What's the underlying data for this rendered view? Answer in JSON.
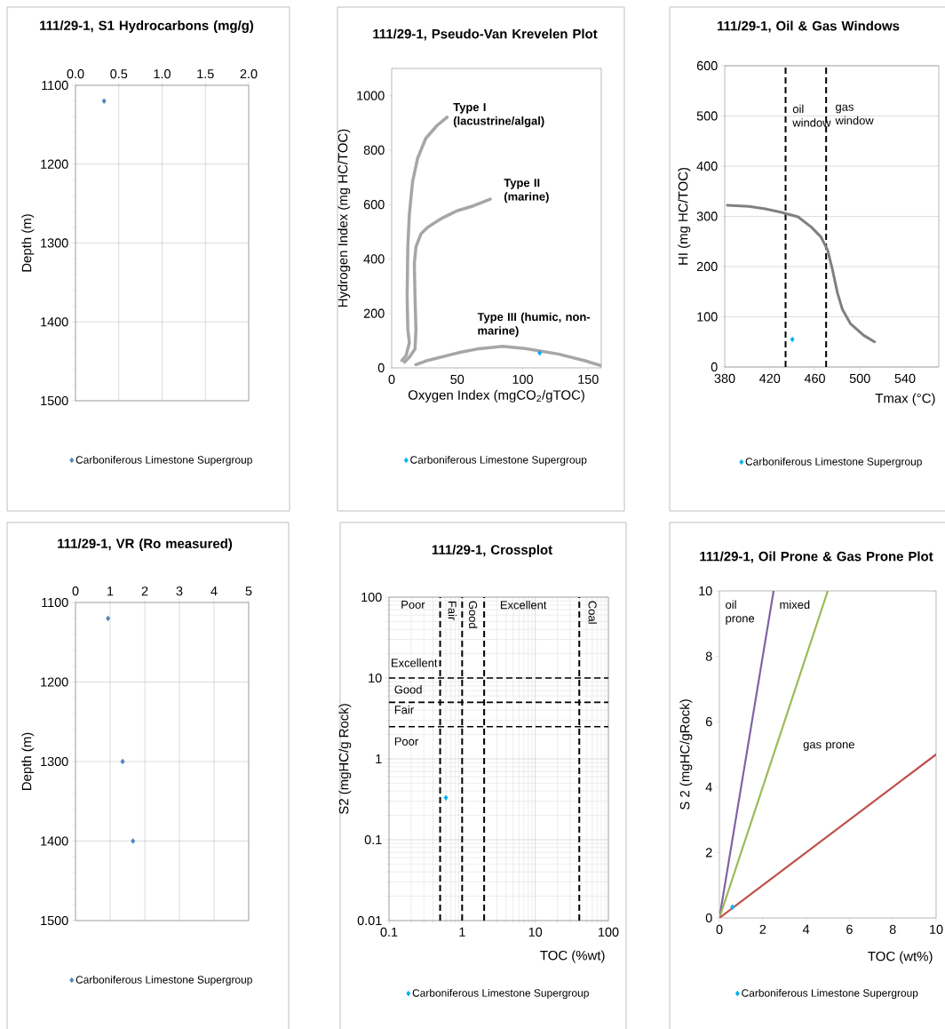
{
  "chart_data": [
    {
      "type": "scatter",
      "title": "111/29-1, S1 Hydrocarbons  (mg/g)",
      "ylabel": "Depth (m)",
      "xlim": [
        0,
        2
      ],
      "xticks": [
        {
          "value": 0,
          "label": "0.0"
        },
        0.5,
        {
          "value": 1,
          "label": "1.0"
        },
        1.5,
        {
          "value": 2,
          "label": "2.0"
        }
      ],
      "ylim": [
        1500,
        1100
      ],
      "yticks": [
        1100,
        1200,
        1300,
        1400,
        1500
      ],
      "grid": true,
      "legend": "bottom",
      "series": [
        {
          "name": "Carboniferous Limestone Supergroup",
          "color": "#4f81bd",
          "marker": "diamond",
          "x": [
            0.33
          ],
          "values": [
            1120
          ]
        }
      ]
    },
    {
      "type": "scatter",
      "title": "111/29-1, Pseudo-Van Krevelen Plot",
      "xlabel": "Oxygen Index (mgCO$_{2}$/gTOC)",
      "ylabel": "Hydrogen Index (mg HC/TOC)",
      "xlim": [
        0,
        160
      ],
      "xticks": [
        0,
        50,
        100,
        150
      ],
      "ylim": [
        0,
        1100
      ],
      "yticks": [
        0,
        200,
        400,
        600,
        800,
        1000
      ],
      "legend": "bottom",
      "series": [
        {
          "type": "line",
          "color": "#a6a6a6",
          "x": [
            42.3,
            34.8,
            26,
            19.8,
            16,
            13.5,
            12.3,
            11.8,
            12.3,
            13.5,
            11,
            7.8
          ],
          "values": [
            921,
            891,
            843,
            770,
            686,
            565,
            444,
            262,
            141,
            93,
            45,
            27
          ]
        },
        {
          "type": "line",
          "color": "#a6a6a6",
          "x": [
            75.3,
            62.3,
            49.8,
            37.3,
            27.3,
            22.3,
            18.5,
            17.3,
            17.8,
            18.5,
            17.8,
            13.5,
            9.8
          ],
          "values": [
            620,
            595,
            577,
            547,
            516,
            492,
            444,
            383,
            262,
            141,
            69,
            39,
            21
          ]
        },
        {
          "type": "line",
          "color": "#a6a6a6",
          "x": [
            18.5,
            27.3,
            52.3,
            64.8,
            84.8,
            102,
            127,
            147,
            160
          ],
          "values": [
            12,
            27,
            57,
            69,
            79,
            71,
            51,
            27,
            8
          ]
        },
        {
          "name": "Carboniferous Limestone Supergroup",
          "color": "#00b0f0",
          "marker": "diamond",
          "x": [
            113
          ],
          "values": [
            55
          ]
        }
      ],
      "annotations": [
        "Type I (lacustrine/algal)",
        "Type II (marine)",
        "Type III (humic, non-marine)"
      ]
    },
    {
      "type": "scatter",
      "title": "111/29-1, Oil & Gas Windows",
      "xlabel": "Tmax (°C)",
      "ylabel": "HI (mg HC/TOC)",
      "xlim": [
        380,
        570
      ],
      "xticks": [
        380,
        420,
        460,
        500,
        540
      ],
      "ylim": [
        0,
        600
      ],
      "yticks": [
        0,
        100,
        200,
        300,
        400,
        500,
        600
      ],
      "grid": "y",
      "legend": "bottom",
      "series": [
        {
          "type": "line",
          "color": "#808080",
          "x": [
            382.3,
            401.3,
            415.9,
            430.4,
            445,
            456.7,
            465.4,
            471.3,
            475.6,
            480,
            484.4,
            491.7,
            503.3,
            513
          ],
          "values": [
            322,
            320,
            315,
            308,
            299,
            279,
            259,
            233,
            194,
            148,
            115,
            86,
            63,
            50
          ]
        },
        {
          "name": "Carboniferous Limestone Supergroup",
          "color": "#00b0f0",
          "marker": "diamond",
          "x": [
            440
          ],
          "values": [
            55
          ]
        }
      ],
      "ref_lines": [
        {
          "axis": "x",
          "value": 434,
          "color": "#000000",
          "line_style": "dashed"
        },
        {
          "axis": "x",
          "value": 470,
          "color": "#000000",
          "line_style": "dashed"
        }
      ],
      "annotations": [
        "oil window",
        "gas window"
      ]
    },
    {
      "type": "scatter",
      "title": "111/29-1, VR (Ro measured)",
      "ylabel": "Depth (m)",
      "xlim": [
        0,
        5
      ],
      "xticks": [
        0,
        1,
        2,
        3,
        4,
        5
      ],
      "ylim": [
        1500,
        1100
      ],
      "yticks": [
        1100,
        1200,
        1300,
        1400,
        1500
      ],
      "grid": true,
      "legend": "bottom",
      "series": [
        {
          "name": "Carboniferous Limestone Supergroup",
          "color": "#4f81bd",
          "marker": "diamond",
          "x": [
            0.94,
            1.36,
            1.66
          ],
          "values": [
            1120,
            1300,
            1400
          ]
        }
      ]
    },
    {
      "type": "scatter",
      "title": "111/29-1, Crossplot",
      "xlabel": "TOC  (%wt)",
      "ylabel": "S2 (mgHC/g  Rock)",
      "log": "xy",
      "xlim": [
        0.1,
        100
      ],
      "xticks": [
        0.1,
        1,
        10,
        100
      ],
      "ylim": [
        0.01,
        100
      ],
      "yticks": [
        0.01,
        0.1,
        1,
        10,
        100
      ],
      "grid": true,
      "legend": "bottom",
      "series": [
        {
          "name": "Carboniferous Limestone Supergroup",
          "color": "#00b0f0",
          "marker": "diamond",
          "x": [
            0.6
          ],
          "values": [
            0.33
          ]
        }
      ],
      "ref_lines": [
        {
          "axis": "x",
          "value": 0.5,
          "color": "#000000",
          "line_style": "dashed"
        },
        {
          "axis": "x",
          "value": 1,
          "color": "#000000",
          "line_style": "dashed"
        },
        {
          "axis": "x",
          "value": 2,
          "color": "#000000",
          "line_style": "dashed"
        },
        {
          "axis": "x",
          "value": 40,
          "color": "#000000",
          "line_style": "dashed"
        },
        {
          "axis": "y",
          "value": 2.5,
          "color": "#000000",
          "line_style": "dashed"
        },
        {
          "axis": "y",
          "value": 5,
          "color": "#000000",
          "line_style": "dashed"
        },
        {
          "axis": "y",
          "value": 10,
          "color": "#000000",
          "line_style": "dashed"
        }
      ],
      "annotations": [
        "Poor",
        "Fair",
        "Good",
        "Excellent",
        "Coal",
        "Excellent",
        "Good",
        "Fair",
        "Poor"
      ]
    },
    {
      "type": "scatter",
      "title": "111/29-1, Oil Prone & Gas Prone Plot",
      "xlabel": "TOC  (wt%)",
      "ylabel": "S 2 (mgHC/gRock)",
      "xlim": [
        0,
        10
      ],
      "xticks": [
        0,
        2,
        4,
        6,
        8,
        10
      ],
      "ylim": [
        0,
        10
      ],
      "yticks": [
        0,
        2,
        4,
        6,
        8,
        10
      ],
      "legend": "bottom",
      "series": [
        {
          "type": "line",
          "color": "#8064a2",
          "x": [
            0,
            2.5
          ],
          "values": [
            0,
            10
          ]
        },
        {
          "type": "line",
          "color": "#9bbb59",
          "x": [
            0,
            5
          ],
          "values": [
            0,
            10
          ]
        },
        {
          "type": "line",
          "color": "#c0504d",
          "x": [
            0,
            10
          ],
          "values": [
            0,
            5
          ]
        },
        {
          "name": "Carboniferous Limestone Supergroup",
          "color": "#00b0f0",
          "marker": "diamond",
          "x": [
            0.6
          ],
          "values": [
            0.33
          ]
        }
      ],
      "annotations": [
        "oil prone",
        "mixed",
        "gas prone"
      ]
    }
  ]
}
